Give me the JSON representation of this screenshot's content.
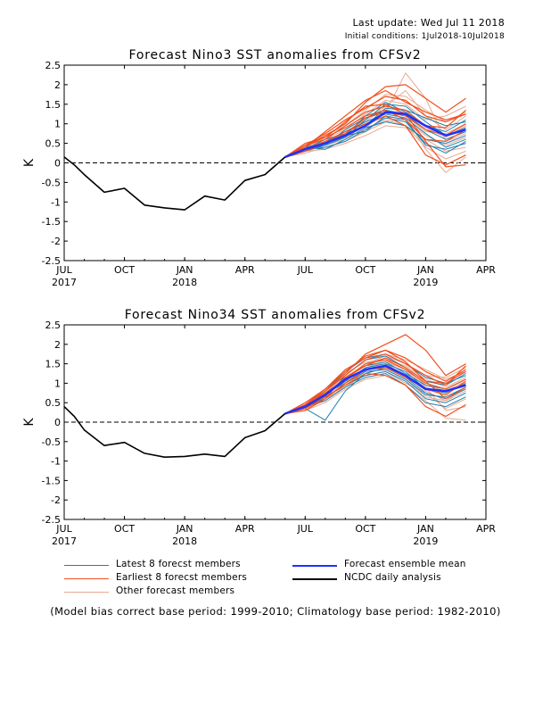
{
  "header": {
    "last_update": "Last update: Wed Jul 11 2018",
    "initial_conditions": "Initial conditions: 1Jul2018-10Jul2018"
  },
  "footnote": "(Model bias correct base period: 1999-2010; Climatology base period: 1982-2010)",
  "legend": [
    {
      "label": "Latest 8 forecst members",
      "color": "#1f7fb0"
    },
    {
      "label": "Earliest 8 forecst members",
      "color": "#f0501e"
    },
    {
      "label": "Other forecast members",
      "color": "#e8a890"
    },
    {
      "label": "Forecast ensemble mean",
      "color": "#2030ff"
    },
    {
      "label": "NCDC daily analysis",
      "color": "#000000"
    }
  ],
  "colors": {
    "latest": "#1f7fb0",
    "earliest": "#f0501e",
    "other": "#e8a890",
    "mean": "#2030ff",
    "obs": "#000000"
  },
  "chart_data": [
    {
      "type": "line",
      "title": "Forecast Nino3 SST anomalies from CFSv2",
      "ylabel": "K",
      "ylim": [
        -2.5,
        2.5
      ],
      "yticks": [
        "2.5",
        "2",
        "1.5",
        "1",
        "0.5",
        "0",
        "-0.5",
        "-1",
        "-1.5",
        "-2",
        "-2.5"
      ],
      "xlim": [
        0,
        21
      ],
      "xticks": [
        {
          "label": "JUL",
          "sub": "2017",
          "x": 0
        },
        {
          "label": "OCT",
          "sub": "",
          "x": 3
        },
        {
          "label": "JAN",
          "sub": "2018",
          "x": 6
        },
        {
          "label": "APR",
          "sub": "",
          "x": 9
        },
        {
          "label": "JUL",
          "sub": "",
          "x": 12
        },
        {
          "label": "OCT",
          "sub": "",
          "x": 15
        },
        {
          "label": "JAN",
          "sub": "2019",
          "x": 18
        },
        {
          "label": "APR",
          "sub": "",
          "x": 21
        }
      ],
      "zero_line": "dashed",
      "observed": {
        "name": "NCDC daily analysis",
        "x": [
          0,
          0.5,
          1,
          2,
          3,
          4,
          5,
          6,
          7,
          8,
          9,
          10,
          11
        ],
        "y": [
          0.15,
          -0.05,
          -0.3,
          -0.75,
          -0.65,
          -1.08,
          -1.15,
          -1.2,
          -0.85,
          -0.95,
          -0.45,
          -0.3,
          0.15
        ]
      },
      "ensemble_mean": {
        "name": "Forecast ensemble mean",
        "x": [
          11,
          12,
          13,
          14,
          15,
          16,
          17,
          18,
          19,
          20
        ],
        "y": [
          0.15,
          0.35,
          0.5,
          0.7,
          0.95,
          1.3,
          1.25,
          0.95,
          0.7,
          0.85
        ]
      },
      "members": {
        "x": [
          11,
          12,
          13,
          14,
          15,
          16,
          17,
          18,
          19,
          20
        ],
        "latest": [
          [
            0.15,
            0.35,
            0.4,
            0.55,
            0.85,
            1.15,
            1.05,
            0.5,
            0.25,
            0.55
          ],
          [
            0.15,
            0.3,
            0.45,
            0.65,
            1.1,
            1.5,
            1.45,
            1.05,
            0.7,
            0.9
          ],
          [
            0.15,
            0.4,
            0.5,
            0.8,
            1.05,
            1.25,
            1.15,
            0.75,
            0.4,
            0.6
          ],
          [
            0.15,
            0.35,
            0.6,
            0.75,
            0.95,
            1.4,
            1.35,
            1.15,
            0.95,
            1.05
          ],
          [
            0.15,
            0.3,
            0.55,
            0.7,
            1.2,
            1.55,
            1.3,
            0.95,
            0.8,
            1.1
          ],
          [
            0.15,
            0.4,
            0.35,
            0.6,
            0.9,
            1.05,
            0.95,
            0.6,
            0.5,
            0.7
          ],
          [
            0.15,
            0.35,
            0.45,
            0.85,
            1.15,
            1.35,
            1.25,
            0.85,
            0.6,
            0.8
          ],
          [
            0.15,
            0.3,
            0.5,
            0.7,
            0.8,
            1.2,
            1.1,
            0.45,
            0.35,
            0.5
          ]
        ],
        "earliest": [
          [
            0.15,
            0.45,
            0.75,
            1.1,
            1.4,
            1.7,
            1.6,
            1.2,
            1.05,
            1.25
          ],
          [
            0.15,
            0.4,
            0.7,
            1.0,
            1.55,
            1.95,
            2.0,
            1.65,
            1.3,
            1.65
          ],
          [
            0.15,
            0.5,
            0.65,
            0.9,
            1.2,
            1.35,
            1.1,
            0.6,
            0.55,
            0.85
          ],
          [
            0.15,
            0.35,
            0.55,
            0.8,
            1.0,
            1.2,
            0.95,
            0.2,
            -0.05,
            0.2
          ],
          [
            0.15,
            0.45,
            0.6,
            0.95,
            1.3,
            1.45,
            1.35,
            0.95,
            0.9,
            1.35
          ],
          [
            0.15,
            0.4,
            0.8,
            1.2,
            1.6,
            1.85,
            1.55,
            1.3,
            1.1,
            1.25
          ],
          [
            0.15,
            0.3,
            0.5,
            0.75,
            1.15,
            1.3,
            1.2,
            0.85,
            0.7,
            1.0
          ],
          [
            0.15,
            0.45,
            0.65,
            1.05,
            1.45,
            1.5,
            1.25,
            0.55,
            -0.1,
            -0.05
          ]
        ],
        "other": [
          [
            0.15,
            0.3,
            0.45,
            0.6,
            0.9,
            1.3,
            2.3,
            1.65,
            0.55,
            0.75
          ],
          [
            0.15,
            0.35,
            0.55,
            0.75,
            1.05,
            1.45,
            1.85,
            1.2,
            0.85,
            1.2
          ],
          [
            0.15,
            0.25,
            0.4,
            0.55,
            0.8,
            1.05,
            1.15,
            0.35,
            -0.25,
            0.15
          ],
          [
            0.15,
            0.4,
            0.6,
            0.85,
            1.25,
            1.6,
            1.5,
            1.1,
            1.2,
            1.45
          ],
          [
            0.15,
            0.3,
            0.35,
            0.5,
            0.7,
            0.95,
            0.9,
            0.6,
            0.3,
            0.4
          ],
          [
            0.15,
            0.35,
            0.5,
            0.7,
            1.0,
            1.25,
            1.3,
            0.9,
            0.65,
            0.95
          ],
          [
            0.15,
            0.45,
            0.7,
            0.95,
            1.35,
            1.75,
            1.7,
            1.35,
            1.05,
            1.3
          ],
          [
            0.15,
            0.3,
            0.45,
            0.65,
            0.85,
            1.1,
            0.95,
            0.4,
            0.1,
            0.3
          ],
          [
            0.15,
            0.4,
            0.55,
            0.8,
            1.1,
            1.5,
            1.2,
            0.8,
            0.75,
            1.0
          ],
          [
            0.15,
            0.35,
            0.5,
            0.65,
            0.95,
            1.2,
            1.1,
            0.7,
            0.45,
            0.65
          ]
        ]
      }
    },
    {
      "type": "line",
      "title": "Forecast Nino34 SST anomalies from CFSv2",
      "ylabel": "K",
      "ylim": [
        -2.5,
        2.5
      ],
      "yticks": [
        "2.5",
        "2",
        "1.5",
        "1",
        "0.5",
        "0",
        "-0.5",
        "-1",
        "-1.5",
        "-2",
        "-2.5"
      ],
      "xlim": [
        0,
        21
      ],
      "xticks": [
        {
          "label": "JUL",
          "sub": "2017",
          "x": 0
        },
        {
          "label": "OCT",
          "sub": "",
          "x": 3
        },
        {
          "label": "JAN",
          "sub": "2018",
          "x": 6
        },
        {
          "label": "APR",
          "sub": "",
          "x": 9
        },
        {
          "label": "JUL",
          "sub": "",
          "x": 12
        },
        {
          "label": "OCT",
          "sub": "",
          "x": 15
        },
        {
          "label": "JAN",
          "sub": "2019",
          "x": 18
        },
        {
          "label": "APR",
          "sub": "",
          "x": 21
        }
      ],
      "zero_line": "dashed",
      "observed": {
        "name": "NCDC daily analysis",
        "x": [
          0,
          0.5,
          1,
          2,
          3,
          4,
          5,
          6,
          7,
          8,
          9,
          10,
          11
        ],
        "y": [
          0.4,
          0.15,
          -0.2,
          -0.6,
          -0.52,
          -0.8,
          -0.9,
          -0.88,
          -0.82,
          -0.88,
          -0.4,
          -0.22,
          0.22
        ]
      },
      "ensemble_mean": {
        "name": "Forecast ensemble mean",
        "x": [
          11,
          12,
          13,
          14,
          15,
          16,
          17,
          18,
          19,
          20
        ],
        "y": [
          0.22,
          0.4,
          0.7,
          1.1,
          1.35,
          1.45,
          1.2,
          0.85,
          0.8,
          0.95
        ]
      },
      "members": {
        "x": [
          11,
          12,
          13,
          14,
          15,
          16,
          17,
          18,
          19,
          20
        ],
        "latest": [
          [
            0.22,
            0.35,
            0.05,
            0.8,
            1.25,
            1.4,
            1.15,
            0.75,
            0.6,
            0.85
          ],
          [
            0.22,
            0.4,
            0.6,
            1.2,
            1.6,
            1.7,
            1.4,
            1.05,
            0.95,
            1.25
          ],
          [
            0.22,
            0.45,
            0.75,
            1.0,
            1.3,
            1.35,
            1.1,
            0.7,
            0.65,
            0.9
          ],
          [
            0.22,
            0.4,
            0.7,
            1.15,
            1.45,
            1.55,
            1.25,
            0.95,
            0.85,
            1.1
          ],
          [
            0.22,
            0.35,
            0.65,
            0.95,
            1.2,
            1.3,
            1.05,
            0.6,
            0.5,
            0.75
          ],
          [
            0.22,
            0.45,
            0.8,
            1.3,
            1.65,
            1.75,
            1.5,
            1.15,
            1.0,
            1.2
          ],
          [
            0.22,
            0.4,
            0.55,
            0.9,
            1.15,
            1.25,
            0.95,
            0.5,
            0.4,
            0.65
          ],
          [
            0.22,
            0.35,
            0.7,
            1.05,
            1.4,
            1.5,
            1.3,
            0.85,
            0.75,
            1.0
          ]
        ],
        "earliest": [
          [
            0.22,
            0.45,
            0.8,
            1.25,
            1.75,
            2.0,
            2.25,
            1.85,
            1.2,
            1.5
          ],
          [
            0.22,
            0.4,
            0.75,
            1.1,
            1.5,
            1.6,
            1.35,
            1.0,
            0.85,
            1.1
          ],
          [
            0.22,
            0.5,
            0.85,
            1.35,
            1.65,
            1.85,
            1.65,
            1.3,
            1.05,
            1.35
          ],
          [
            0.22,
            0.35,
            0.65,
            0.95,
            1.25,
            1.2,
            0.95,
            0.4,
            0.15,
            0.45
          ],
          [
            0.22,
            0.45,
            0.7,
            1.15,
            1.45,
            1.65,
            1.4,
            1.05,
            1.0,
            1.3
          ],
          [
            0.22,
            0.4,
            0.8,
            1.2,
            1.6,
            1.75,
            1.5,
            1.2,
            0.95,
            1.45
          ],
          [
            0.22,
            0.3,
            0.6,
            1.0,
            1.35,
            1.4,
            1.15,
            0.85,
            0.7,
            1.05
          ],
          [
            0.22,
            0.45,
            0.85,
            1.3,
            1.7,
            1.85,
            1.55,
            1.05,
            0.6,
            0.9
          ]
        ],
        "other": [
          [
            0.22,
            0.35,
            0.6,
            1.0,
            1.4,
            1.55,
            1.35,
            0.9,
            0.3,
            0.4
          ],
          [
            0.22,
            0.4,
            0.7,
            1.1,
            1.5,
            1.7,
            1.5,
            1.2,
            1.15,
            1.4
          ],
          [
            0.22,
            0.3,
            0.5,
            0.85,
            1.1,
            1.2,
            0.95,
            0.55,
            0.1,
            0.05
          ],
          [
            0.22,
            0.4,
            0.75,
            1.2,
            1.6,
            1.75,
            1.6,
            1.35,
            1.1,
            1.3
          ],
          [
            0.22,
            0.35,
            0.55,
            0.95,
            1.3,
            1.35,
            1.1,
            0.65,
            0.55,
            0.8
          ],
          [
            0.22,
            0.45,
            0.85,
            1.25,
            1.55,
            1.6,
            1.45,
            1.1,
            0.9,
            1.15
          ],
          [
            0.22,
            0.3,
            0.6,
            1.05,
            1.2,
            1.3,
            1.0,
            0.75,
            0.35,
            0.6
          ],
          [
            0.22,
            0.4,
            0.65,
            1.1,
            1.45,
            1.5,
            1.2,
            0.9,
            0.75,
            1.0
          ],
          [
            0.22,
            0.35,
            0.7,
            1.15,
            1.5,
            1.65,
            1.4,
            0.95,
            0.8,
            1.05
          ],
          [
            0.22,
            0.4,
            0.6,
            0.9,
            1.25,
            1.4,
            1.2,
            0.8,
            0.55,
            0.9
          ]
        ]
      }
    }
  ]
}
